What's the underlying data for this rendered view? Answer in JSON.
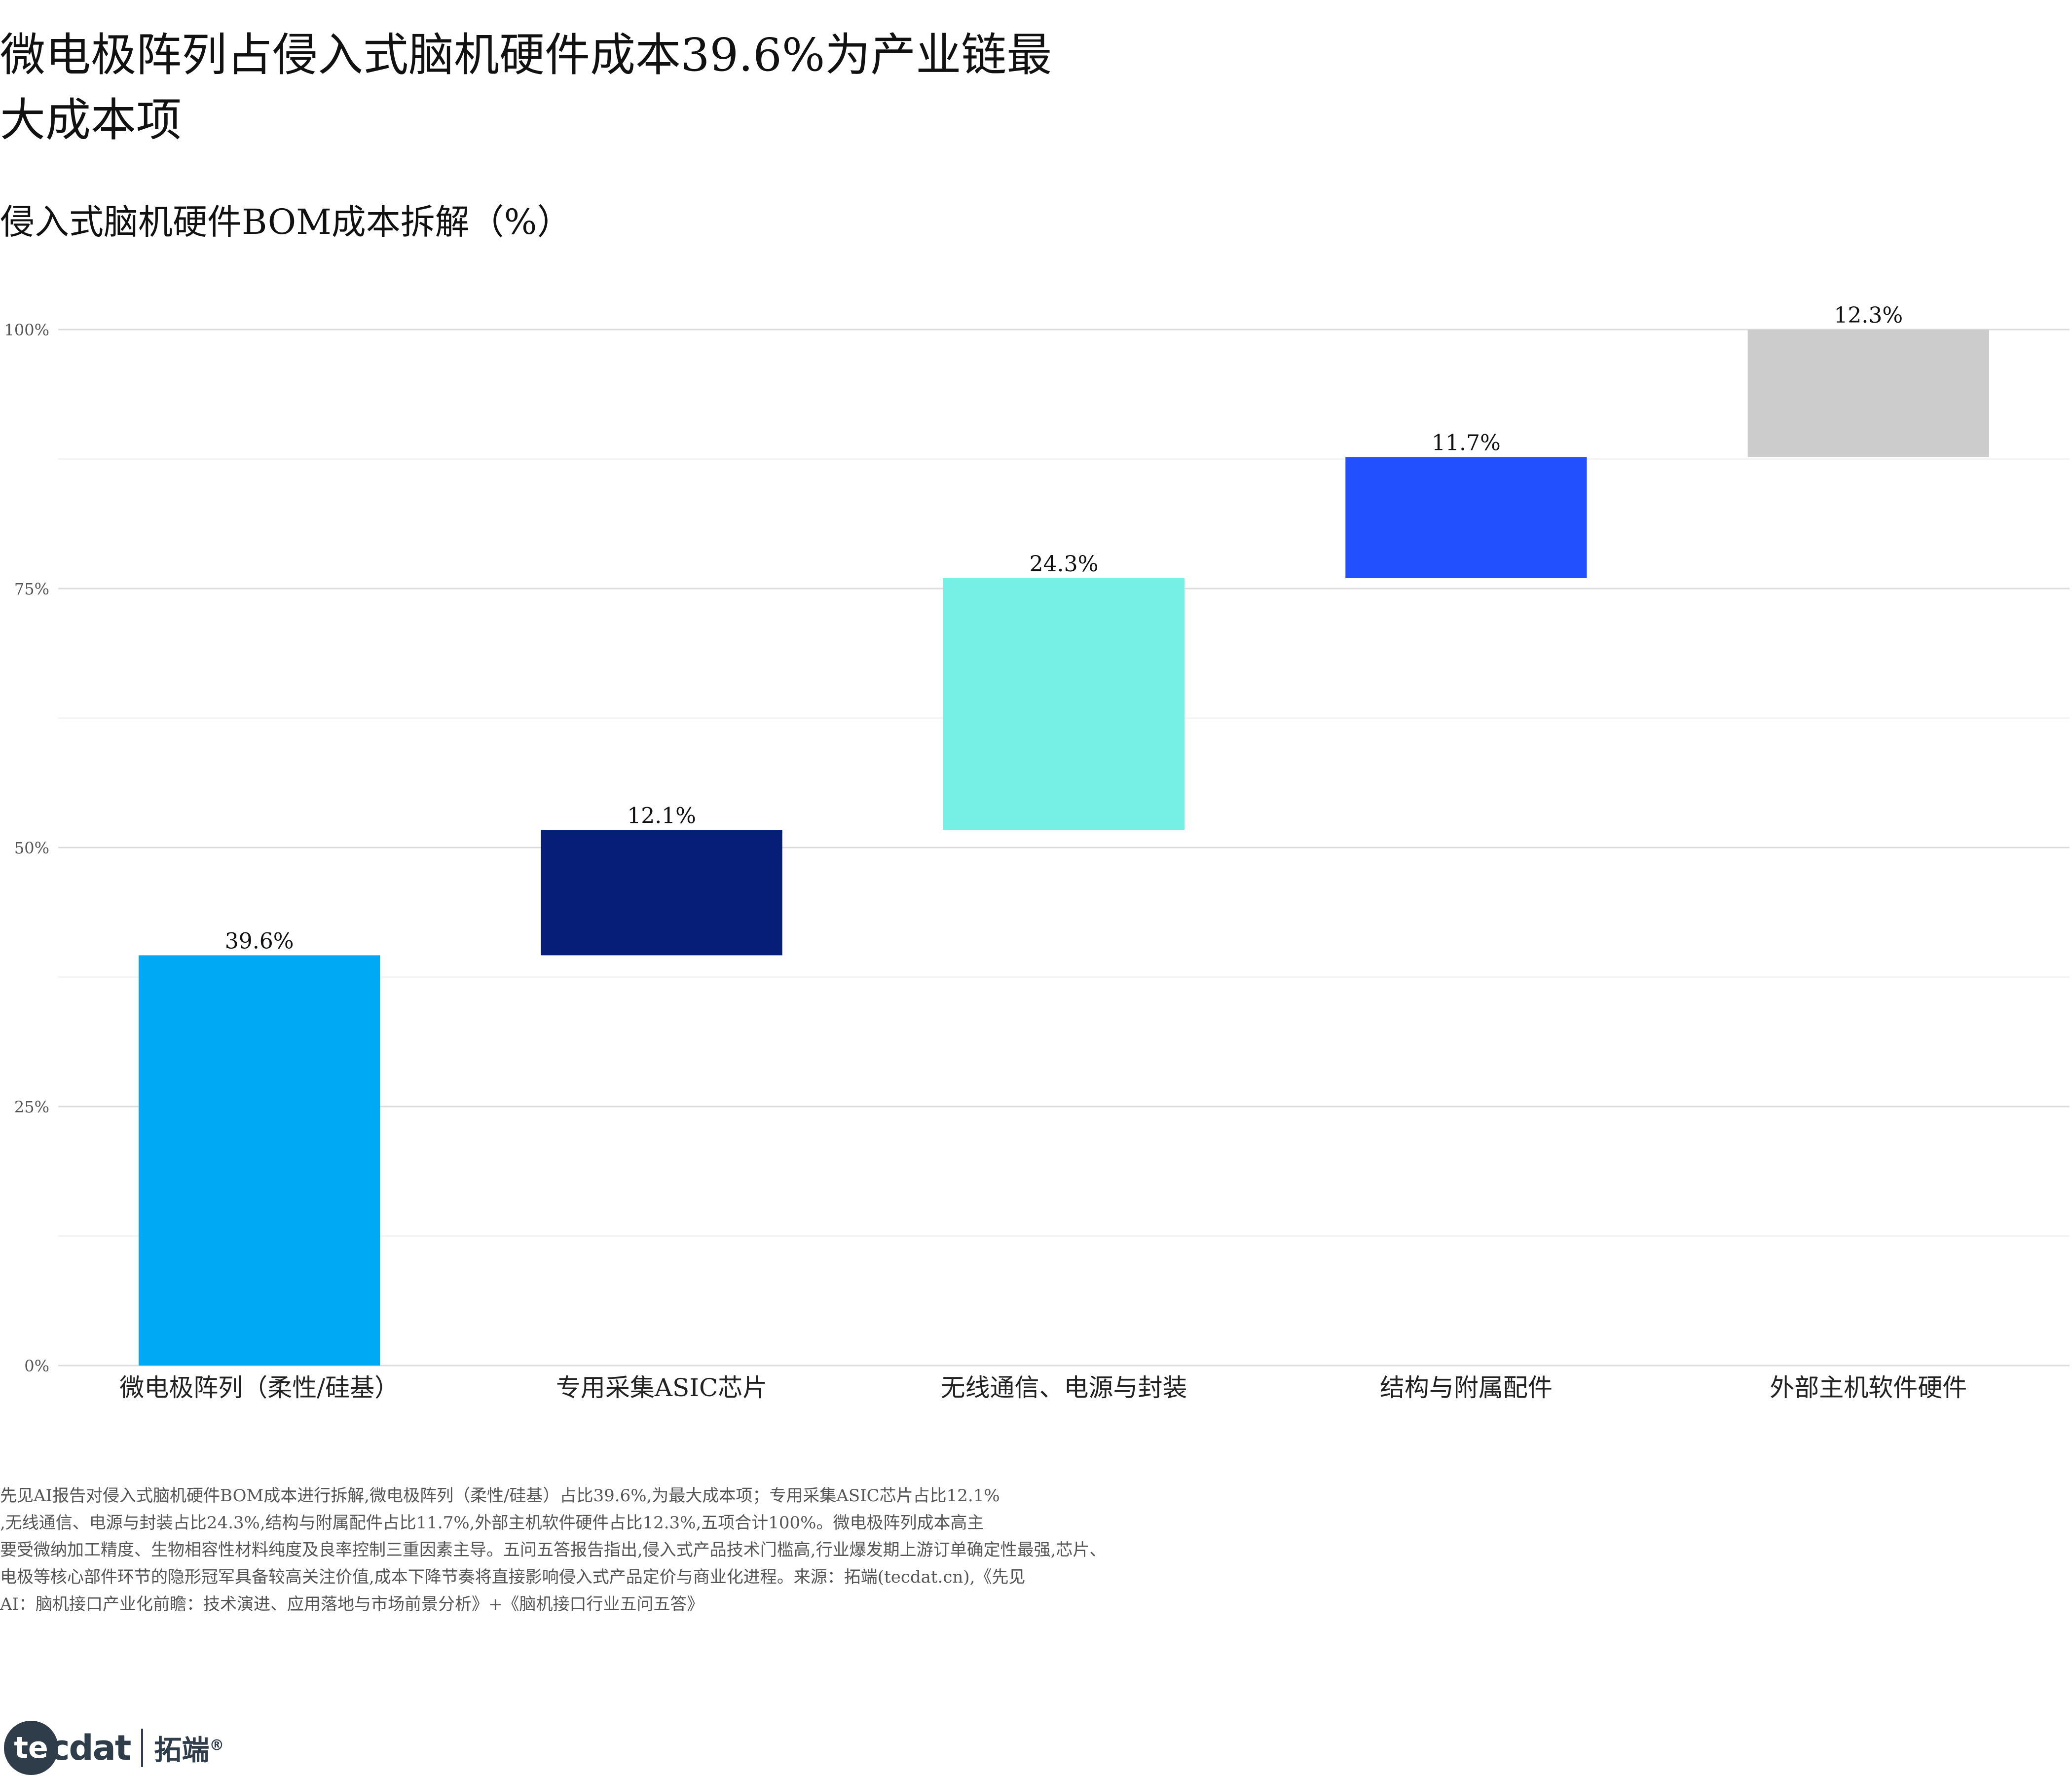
{
  "page": {
    "title_line1": "微电极阵列占侵入式脑机硬件成本39.6%为产业链最",
    "title_line2": "大成本项",
    "subtitle": "侵入式脑机硬件BOM成本拆解（%）"
  },
  "chart_data": {
    "type": "bar",
    "subtype": "waterfall",
    "title": "侵入式脑机硬件BOM成本拆解（%）",
    "categories": [
      "微电极阵列（柔性/硅基）",
      "专用采集ASIC芯片",
      "无线通信、电源与封装",
      "结构与附属配件",
      "外部主机软件硬件"
    ],
    "values": [
      39.6,
      12.1,
      24.3,
      11.7,
      12.3
    ],
    "value_labels": [
      "39.6%",
      "12.1%",
      "24.3%",
      "11.7%",
      "12.3%"
    ],
    "colors": [
      "#00a9f4",
      "#071e78",
      "#76f0e4",
      "#2350ff",
      "#cccccc"
    ],
    "y_ticks": [
      0,
      25,
      50,
      75,
      100
    ],
    "y_tick_labels": [
      "0%",
      "25%",
      "50%",
      "75%",
      "100%"
    ],
    "ylim": [
      0,
      100
    ],
    "xlabel": "",
    "ylabel": "",
    "grid": true,
    "legend": "none"
  },
  "footnote": {
    "lines": [
      "先见AI报告对侵入式脑机硬件BOM成本进行拆解,微电极阵列（柔性/硅基）占比39.6%,为最大成本项；专用采集ASIC芯片占比12.1%",
      ",无线通信、电源与封装占比24.3%,结构与附属配件占比11.7%,外部主机软件硬件占比12.3%,五项合计100%。微电极阵列成本高主",
      "要受微纳加工精度、生物相容性材料纯度及良率控制三重因素主导。五问五答报告指出,侵入式产品技术门槛高,行业爆发期上游订单确定性最强,芯片、",
      "电极等核心部件环节的隐形冠军具备较高关注价值,成本下降节奏将直接影响侵入式产品定价与商业化进程。来源：拓端(tecdat.cn),《先见",
      "AI：脑机接口产业化前瞻：技术演进、应用落地与市场前景分析》+《脑机接口行业五问五答》"
    ]
  },
  "logo": {
    "mark": "te",
    "word": "cdat",
    "cn": "拓端",
    "reg": "®"
  }
}
